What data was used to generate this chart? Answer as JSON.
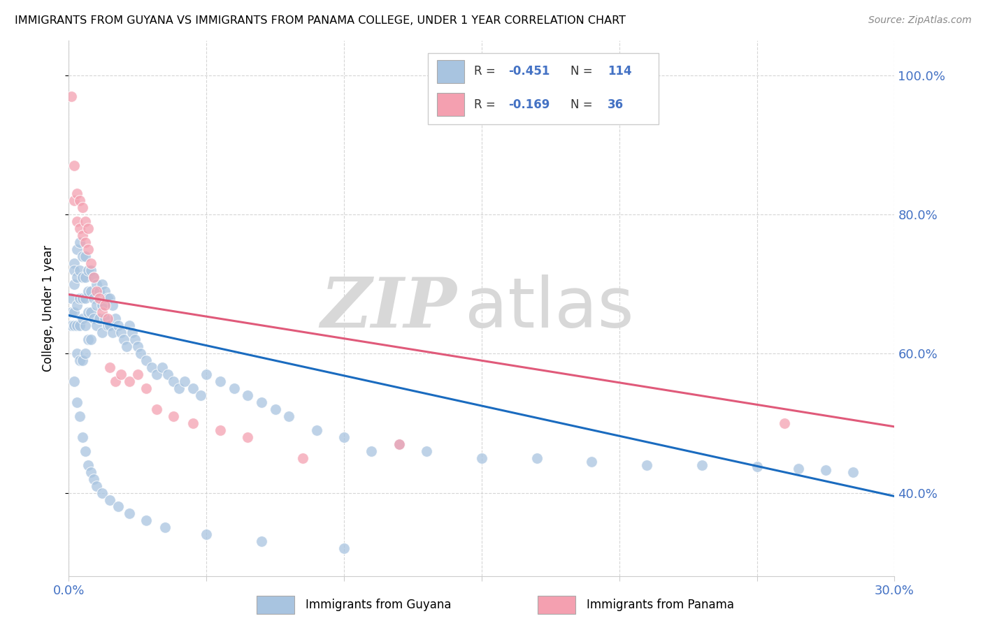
{
  "title": "IMMIGRANTS FROM GUYANA VS IMMIGRANTS FROM PANAMA COLLEGE, UNDER 1 YEAR CORRELATION CHART",
  "source": "Source: ZipAtlas.com",
  "ylabel": "College, Under 1 year",
  "xmin": 0.0,
  "xmax": 0.3,
  "ymin": 0.28,
  "ymax": 1.05,
  "color_guyana": "#a8c4e0",
  "color_panama": "#f4a0b0",
  "color_line_guyana": "#1a6bbf",
  "color_line_panama": "#e05a7a",
  "watermark_zip": "ZIP",
  "watermark_atlas": "atlas",
  "line_guyana_x0": 0.0,
  "line_guyana_y0": 0.655,
  "line_guyana_x1": 0.3,
  "line_guyana_y1": 0.395,
  "line_panama_x0": 0.0,
  "line_panama_y0": 0.685,
  "line_panama_x1": 0.3,
  "line_panama_y1": 0.495,
  "guyana_x": [
    0.001,
    0.001,
    0.001,
    0.002,
    0.002,
    0.002,
    0.002,
    0.002,
    0.003,
    0.003,
    0.003,
    0.003,
    0.003,
    0.004,
    0.004,
    0.004,
    0.004,
    0.004,
    0.005,
    0.005,
    0.005,
    0.005,
    0.005,
    0.006,
    0.006,
    0.006,
    0.006,
    0.006,
    0.007,
    0.007,
    0.007,
    0.007,
    0.008,
    0.008,
    0.008,
    0.008,
    0.009,
    0.009,
    0.009,
    0.01,
    0.01,
    0.01,
    0.011,
    0.011,
    0.012,
    0.012,
    0.012,
    0.013,
    0.013,
    0.014,
    0.014,
    0.015,
    0.015,
    0.016,
    0.016,
    0.017,
    0.018,
    0.019,
    0.02,
    0.021,
    0.022,
    0.023,
    0.024,
    0.025,
    0.026,
    0.028,
    0.03,
    0.032,
    0.034,
    0.036,
    0.038,
    0.04,
    0.042,
    0.045,
    0.048,
    0.05,
    0.055,
    0.06,
    0.065,
    0.07,
    0.075,
    0.08,
    0.09,
    0.1,
    0.11,
    0.12,
    0.13,
    0.15,
    0.17,
    0.19,
    0.21,
    0.23,
    0.25,
    0.265,
    0.275,
    0.285,
    0.002,
    0.003,
    0.004,
    0.005,
    0.006,
    0.007,
    0.008,
    0.009,
    0.01,
    0.012,
    0.015,
    0.018,
    0.022,
    0.028,
    0.035,
    0.05,
    0.07,
    0.1
  ],
  "guyana_y": [
    0.66,
    0.68,
    0.64,
    0.73,
    0.7,
    0.66,
    0.72,
    0.64,
    0.75,
    0.71,
    0.67,
    0.64,
    0.6,
    0.76,
    0.72,
    0.68,
    0.64,
    0.59,
    0.74,
    0.71,
    0.68,
    0.65,
    0.59,
    0.74,
    0.71,
    0.68,
    0.64,
    0.6,
    0.72,
    0.69,
    0.66,
    0.62,
    0.72,
    0.69,
    0.66,
    0.62,
    0.71,
    0.68,
    0.65,
    0.7,
    0.67,
    0.64,
    0.69,
    0.65,
    0.7,
    0.67,
    0.63,
    0.69,
    0.65,
    0.68,
    0.64,
    0.68,
    0.64,
    0.67,
    0.63,
    0.65,
    0.64,
    0.63,
    0.62,
    0.61,
    0.64,
    0.63,
    0.62,
    0.61,
    0.6,
    0.59,
    0.58,
    0.57,
    0.58,
    0.57,
    0.56,
    0.55,
    0.56,
    0.55,
    0.54,
    0.57,
    0.56,
    0.55,
    0.54,
    0.53,
    0.52,
    0.51,
    0.49,
    0.48,
    0.46,
    0.47,
    0.46,
    0.45,
    0.45,
    0.445,
    0.44,
    0.44,
    0.438,
    0.435,
    0.433,
    0.43,
    0.56,
    0.53,
    0.51,
    0.48,
    0.46,
    0.44,
    0.43,
    0.42,
    0.41,
    0.4,
    0.39,
    0.38,
    0.37,
    0.36,
    0.35,
    0.34,
    0.33,
    0.32
  ],
  "panama_x": [
    0.001,
    0.002,
    0.002,
    0.003,
    0.003,
    0.004,
    0.004,
    0.005,
    0.005,
    0.006,
    0.006,
    0.007,
    0.007,
    0.008,
    0.009,
    0.01,
    0.011,
    0.012,
    0.013,
    0.014,
    0.015,
    0.017,
    0.019,
    0.022,
    0.025,
    0.028,
    0.032,
    0.038,
    0.045,
    0.055,
    0.065,
    0.085,
    0.12,
    0.26
  ],
  "panama_y": [
    0.97,
    0.87,
    0.82,
    0.83,
    0.79,
    0.82,
    0.78,
    0.81,
    0.77,
    0.79,
    0.76,
    0.78,
    0.75,
    0.73,
    0.71,
    0.69,
    0.68,
    0.66,
    0.67,
    0.65,
    0.58,
    0.56,
    0.57,
    0.56,
    0.57,
    0.55,
    0.52,
    0.51,
    0.5,
    0.49,
    0.48,
    0.45,
    0.47,
    0.5
  ]
}
